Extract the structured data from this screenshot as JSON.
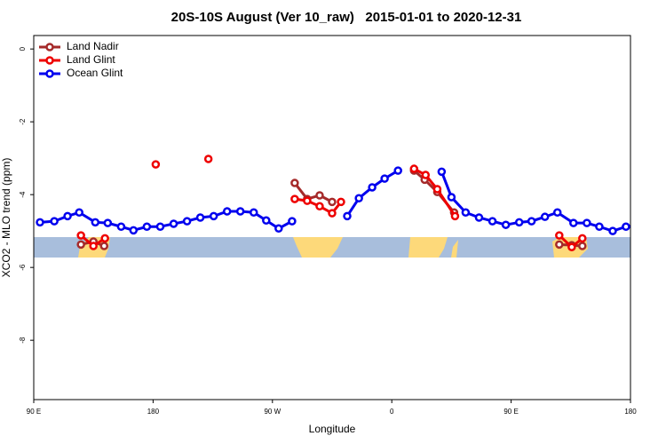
{
  "chart_data": {
    "type": "line",
    "title": "20S-10S August (Ver 10_raw)   2015-01-01 to 2020-12-31",
    "x_label": "Longitude",
    "y_label": "XCO2 - MLO trend (ppm)",
    "xlim": [
      -270,
      180
    ],
    "xticks": [
      {
        "value": -270,
        "label": "90 E"
      },
      {
        "value": -180,
        "label": "180"
      },
      {
        "value": -90,
        "label": "90 W"
      },
      0,
      {
        "value": 90,
        "label": "90 E"
      },
      180
    ],
    "ylim": [
      -9.63,
      0.37
    ],
    "yticks": [
      0,
      -2,
      -4,
      -6,
      -8
    ],
    "legend": "top-left",
    "series": [
      {
        "name": "Land Nadir",
        "color": "#a52a2a",
        "x": [
          -234.4,
          -225.0,
          -216.9,
          null,
          -73.2,
          -63.8,
          -54.4,
          -45.0,
          null,
          16.8,
          24.8,
          34.3,
          47.0,
          null,
          126.3,
          135.7,
          143.7
        ],
        "values": [
          -5.37,
          -5.29,
          -5.41,
          null,
          -3.68,
          -4.12,
          -4.02,
          -4.2,
          null,
          -3.34,
          -3.59,
          -3.93,
          -4.49,
          null,
          -5.37,
          -5.39,
          -5.41
        ]
      },
      {
        "name": "Land Glint",
        "color": "#ee0000",
        "x": [
          -234.4,
          -225.0,
          -216.3,
          null,
          -178.0,
          null,
          -138.3,
          null,
          -73.2,
          -63.8,
          -54.4,
          -45.0,
          -38.3,
          null,
          16.8,
          25.5,
          34.3,
          47.7,
          null,
          126.3,
          135.7,
          143.7
        ],
        "values": [
          -5.12,
          -5.41,
          -5.2,
          null,
          -3.17,
          null,
          -3.02,
          null,
          -4.12,
          -4.17,
          -4.32,
          -4.51,
          -4.2,
          null,
          -3.29,
          -3.46,
          -3.85,
          -4.59,
          null,
          -5.12,
          -5.44,
          -5.2
        ]
      },
      {
        "name": "Ocean Glint",
        "color": "#0000ee",
        "x": [
          -265.3,
          -254.5,
          -244.5,
          -235.7,
          -223.6,
          -214.2,
          -204.1,
          -194.8,
          -184.7,
          -174.6,
          -164.5,
          -154.4,
          -144.4,
          -134.3,
          -124.2,
          -114.2,
          -104.1,
          -94.7,
          -85.3,
          -75.2,
          null,
          -33.6,
          -24.8,
          -14.8,
          -5.4,
          4.7,
          null,
          37.6,
          45.0,
          55.7,
          65.8,
          75.9,
          86.0,
          96.1,
          105.4,
          115.5,
          124.9,
          137.0,
          147.1,
          156.5,
          166.6,
          176.6
        ],
        "values": [
          -4.76,
          -4.73,
          -4.59,
          -4.49,
          -4.76,
          -4.78,
          -4.88,
          -4.98,
          -4.88,
          -4.88,
          -4.8,
          -4.73,
          -4.63,
          -4.59,
          -4.46,
          -4.46,
          -4.49,
          -4.71,
          -4.93,
          -4.73,
          null,
          -4.59,
          -4.1,
          -3.8,
          -3.56,
          -3.34,
          null,
          -3.37,
          -4.07,
          -4.49,
          -4.63,
          -4.73,
          -4.83,
          -4.76,
          -4.73,
          -4.61,
          -4.49,
          -4.78,
          -4.78,
          -4.88,
          -5.0,
          -4.88
        ]
      }
    ]
  }
}
